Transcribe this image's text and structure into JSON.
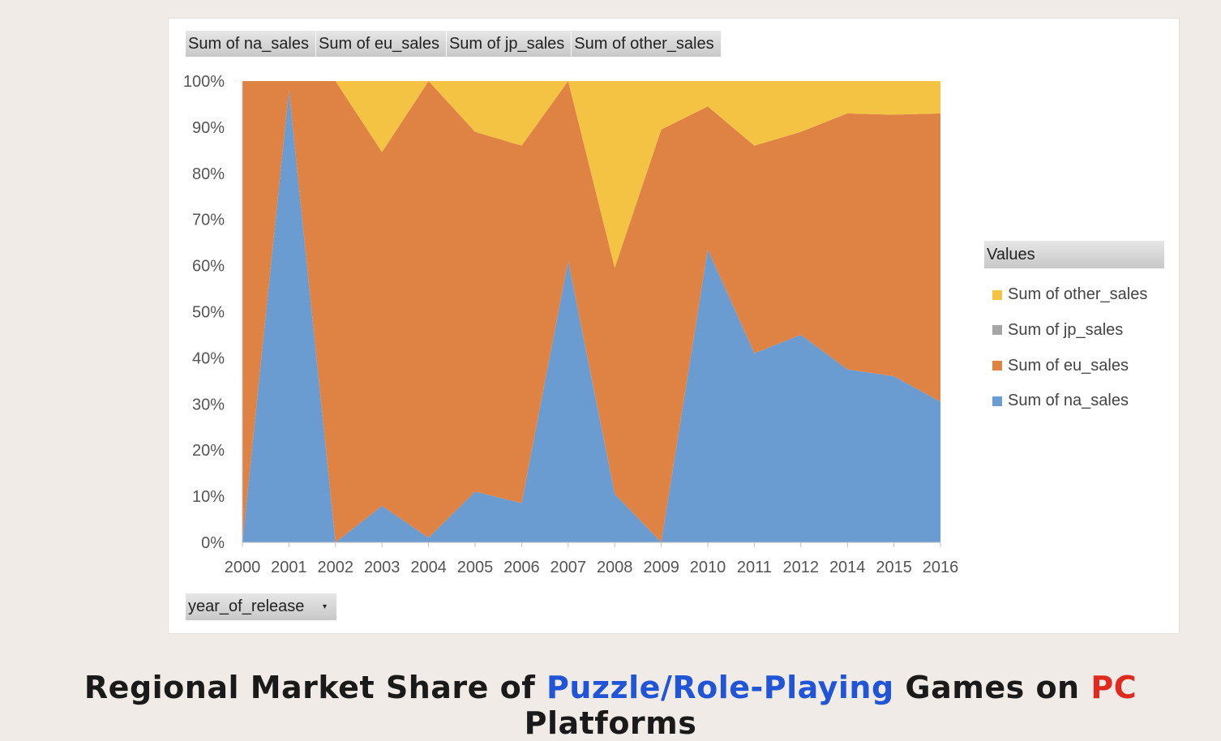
{
  "field_buttons": [
    "Sum of na_sales",
    "Sum of eu_sales",
    "Sum of jp_sales",
    "Sum of other_sales"
  ],
  "filter": {
    "label": "year_of_release",
    "arrow": "▾"
  },
  "legend": {
    "title": "Values",
    "items": [
      {
        "label": "Sum of other_sales",
        "color": "#f4c343"
      },
      {
        "label": "Sum of jp_sales",
        "color": "#a5a5a5"
      },
      {
        "label": "Sum of eu_sales",
        "color": "#df8345"
      },
      {
        "label": "Sum of na_sales",
        "color": "#6a9bd1"
      }
    ]
  },
  "title": {
    "part1": "Regional Market Share of ",
    "highlight1": "Puzzle/Role-Playing",
    "part2": " Games on ",
    "highlight2": "PC",
    "part3": " Platforms"
  },
  "chart_data": {
    "type": "area",
    "stacked": "percent",
    "categories": [
      "2000",
      "2001",
      "2002",
      "2003",
      "2004",
      "2005",
      "2006",
      "2007",
      "2008",
      "2009",
      "2010",
      "2011",
      "2012",
      "2014",
      "2015",
      "2016"
    ],
    "series": [
      {
        "name": "Sum of na_sales",
        "color": "#6a9bd1",
        "values": [
          0.0,
          98.0,
          0.0,
          7.9,
          1.0,
          11.0,
          8.5,
          61.0,
          10.5,
          0.0,
          63.5,
          41.0,
          45.0,
          37.5,
          36.0,
          30.5
        ]
      },
      {
        "name": "Sum of eu_sales",
        "color": "#df8345",
        "values": [
          100.0,
          2.0,
          100.0,
          76.7,
          99.0,
          78.0,
          77.5,
          39.0,
          49.0,
          89.5,
          31.0,
          45.0,
          44.0,
          55.5,
          56.7,
          62.5
        ]
      },
      {
        "name": "Sum of jp_sales",
        "color": "#a5a5a5",
        "values": [
          0,
          0,
          0,
          0,
          0,
          0,
          0,
          0,
          0,
          0,
          0,
          0,
          0,
          0,
          0,
          0
        ]
      },
      {
        "name": "Sum of other_sales",
        "color": "#f4c343",
        "values": [
          0.0,
          0.0,
          0.0,
          15.4,
          0.0,
          11.0,
          14.0,
          0.0,
          40.5,
          10.5,
          5.5,
          14.0,
          11.0,
          7.0,
          7.3,
          7.0
        ]
      }
    ],
    "yticks": [
      "0%",
      "10%",
      "20%",
      "30%",
      "40%",
      "50%",
      "60%",
      "70%",
      "80%",
      "90%",
      "100%"
    ],
    "ylim": [
      0,
      100
    ],
    "legend_position": "right"
  }
}
